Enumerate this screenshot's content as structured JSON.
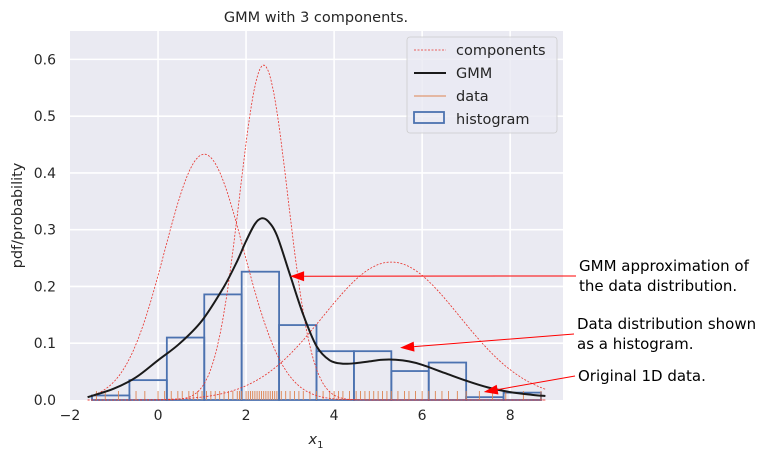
{
  "chart_data": {
    "type": "line",
    "title": "GMM with 3 components.",
    "xlabel": "x",
    "xlabel_sub": "1",
    "ylabel": "pdf/probability",
    "xlim": [
      -2.0,
      9.2
    ],
    "ylim": [
      0.0,
      0.65
    ],
    "xticks": [
      -2,
      0,
      2,
      4,
      6,
      8
    ],
    "yticks": [
      0.0,
      0.1,
      0.2,
      0.3,
      0.4,
      0.5,
      0.6
    ],
    "grid": true,
    "legend_position": "top-right",
    "legend": [
      "components",
      "GMM",
      "data",
      "histogram"
    ],
    "colors": {
      "background": "#eaeaf2",
      "grid": "#ffffff",
      "components": "#e8312a",
      "gmm": "#1a1a1a",
      "data": "#dd8452",
      "histogram": "#4c72b0",
      "arrow": "#ff0000"
    },
    "components": [
      {
        "mean": 1.05,
        "sd": 0.9,
        "peak": 0.433
      },
      {
        "mean": 2.4,
        "sd": 0.55,
        "peak": 0.59
      },
      {
        "mean": 5.3,
        "sd": 1.55,
        "peak": 0.243
      }
    ],
    "gmm": {
      "x": [
        -1.6,
        -1.0,
        -0.5,
        0.0,
        0.5,
        1.0,
        1.5,
        1.8,
        2.0,
        2.2,
        2.35,
        2.5,
        2.7,
        3.0,
        3.3,
        3.6,
        3.9,
        4.2,
        4.5,
        4.8,
        5.1,
        5.4,
        5.7,
        6.0,
        6.5,
        7.0,
        7.5,
        8.0,
        8.5,
        8.8
      ],
      "y": [
        0.005,
        0.02,
        0.04,
        0.07,
        0.1,
        0.14,
        0.2,
        0.245,
        0.28,
        0.31,
        0.32,
        0.315,
        0.29,
        0.22,
        0.15,
        0.095,
        0.07,
        0.064,
        0.065,
        0.068,
        0.071,
        0.071,
        0.068,
        0.062,
        0.048,
        0.034,
        0.022,
        0.014,
        0.009,
        0.007
      ]
    },
    "histogram": {
      "bin_edges": [
        -1.5,
        -0.65,
        0.2,
        1.05,
        1.9,
        2.75,
        3.6,
        4.45,
        5.3,
        6.15,
        7.0,
        7.85,
        8.7
      ],
      "values": [
        0.008,
        0.035,
        0.11,
        0.186,
        0.226,
        0.132,
        0.086,
        0.086,
        0.051,
        0.066,
        0.005,
        0.013
      ]
    },
    "data": [
      -1.4,
      -1.2,
      -0.9,
      -0.5,
      -0.3,
      0.0,
      0.15,
      0.3,
      0.45,
      0.55,
      0.7,
      0.8,
      0.9,
      1.0,
      1.1,
      1.2,
      1.3,
      1.4,
      1.5,
      1.6,
      1.7,
      1.8,
      1.85,
      1.9,
      2.0,
      2.05,
      2.1,
      2.15,
      2.2,
      2.25,
      2.3,
      2.35,
      2.4,
      2.45,
      2.5,
      2.55,
      2.6,
      2.65,
      2.7,
      2.8,
      2.9,
      3.0,
      3.1,
      3.2,
      3.3,
      3.45,
      3.6,
      3.75,
      3.9,
      4.0,
      4.1,
      4.2,
      4.35,
      4.5,
      4.6,
      4.7,
      4.8,
      4.9,
      5.0,
      5.1,
      5.2,
      5.3,
      5.45,
      5.6,
      5.7,
      5.85,
      6.0,
      6.15,
      6.3,
      6.45,
      6.6,
      6.8,
      7.0,
      7.3,
      7.6,
      7.9,
      8.3,
      8.7
    ],
    "annotations": [
      {
        "lines": [
          "GMM approximation of",
          "the data distribution."
        ],
        "target": [
          3.0,
          0.218
        ]
      },
      {
        "lines": [
          "Data distribution shown",
          "as a histogram."
        ],
        "target": [
          5.5,
          0.092
        ]
      },
      {
        "lines": [
          "Original 1D data."
        ],
        "target": [
          7.4,
          0.014
        ]
      }
    ]
  }
}
